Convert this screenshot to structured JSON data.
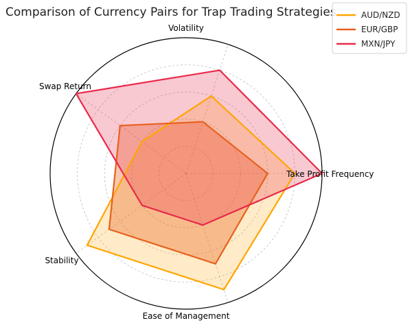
{
  "chart_data": {
    "type": "radar",
    "title": "Comparison of Currency Pairs for Trap Trading Strategies",
    "categories": [
      "Take Profit Frequency",
      "Volatility",
      "Swap Return",
      "Stability",
      "Ease of Management"
    ],
    "rmax": 10,
    "grid_levels": [
      2,
      4,
      6,
      8
    ],
    "grid": true,
    "legend_position": "top-right",
    "series": [
      {
        "name": "AUD/NZD",
        "values": [
          8,
          6,
          4,
          9,
          9
        ],
        "color": "#FFA500",
        "fill_opacity": 0.22
      },
      {
        "name": "EUR/GBP",
        "values": [
          6,
          4,
          6,
          7,
          7
        ],
        "color": "#E8601C",
        "fill_opacity": 0.35
      },
      {
        "name": "MXN/JPY",
        "values": [
          10,
          8,
          10,
          4,
          4
        ],
        "color": "#E8294A",
        "fill_opacity": 0.25
      }
    ]
  }
}
